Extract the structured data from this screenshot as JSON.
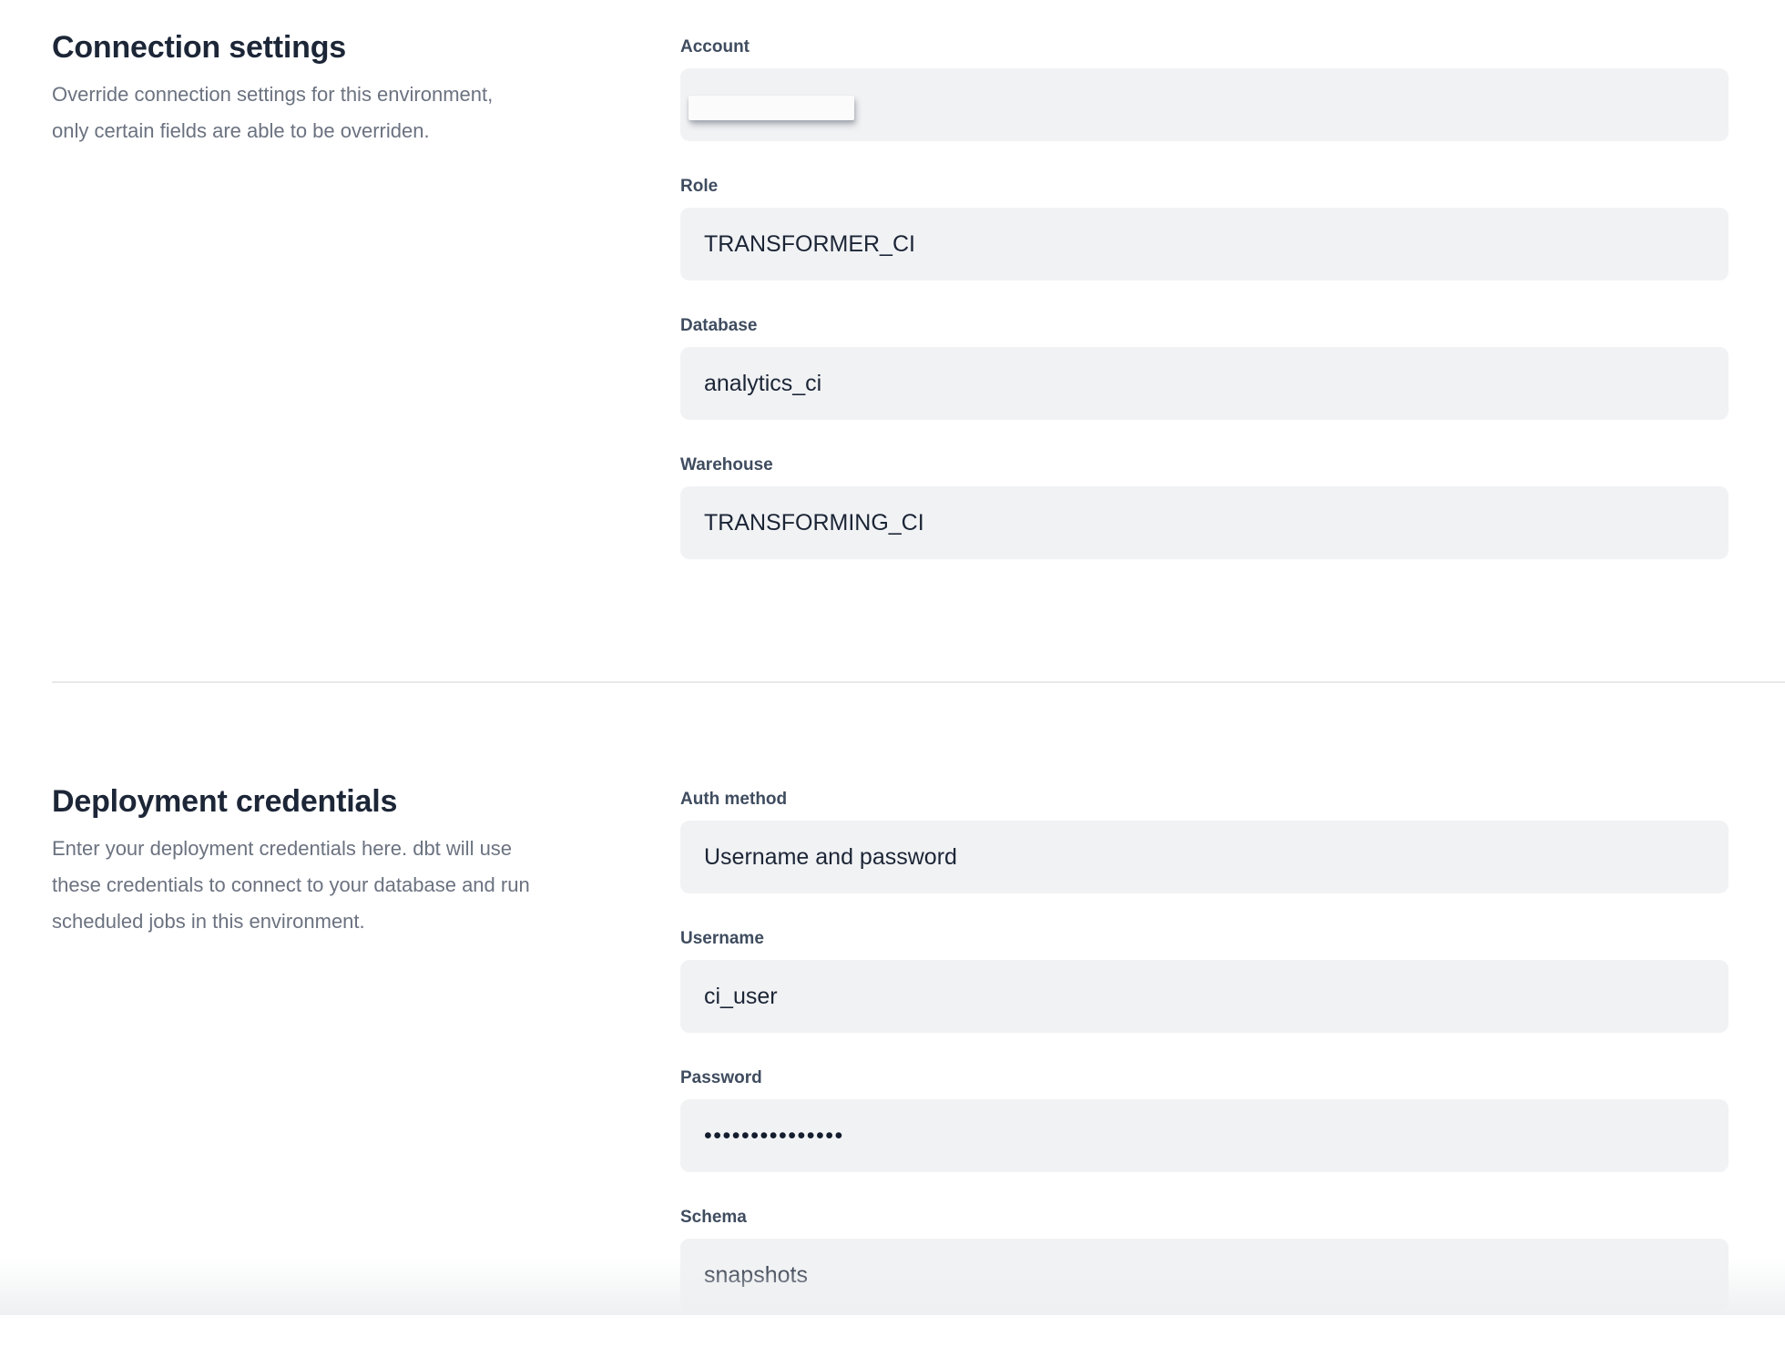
{
  "colors": {
    "heading": "#1c2637",
    "label": "#3f4c5f",
    "value": "#1b2536",
    "description": "#6b7280",
    "field_background": "#f1f2f4",
    "divider": "#e7e8ea"
  },
  "connection_settings": {
    "title": "Connection settings",
    "description_lines": [
      "Override connection settings for this environment,",
      "only certain fields are able to be overriden."
    ],
    "fields": [
      {
        "label": "Account",
        "value": "",
        "redacted": true
      },
      {
        "label": "Role",
        "value": "TRANSFORMER_CI"
      },
      {
        "label": "Database",
        "value": "analytics_ci"
      },
      {
        "label": "Warehouse",
        "value": "TRANSFORMING_CI"
      }
    ]
  },
  "deployment_credentials": {
    "title": "Deployment credentials",
    "description_lines": [
      "Enter your deployment credentials here. dbt will use",
      "these credentials to connect to your database and run",
      "scheduled jobs in this environment."
    ],
    "fields": [
      {
        "label": "Auth method",
        "value": "Username and password"
      },
      {
        "label": "Username",
        "value": "ci_user"
      },
      {
        "label": "Password",
        "value": "•••••••••••••••",
        "masked": true
      },
      {
        "label": "Schema",
        "value": "snapshots"
      }
    ]
  }
}
